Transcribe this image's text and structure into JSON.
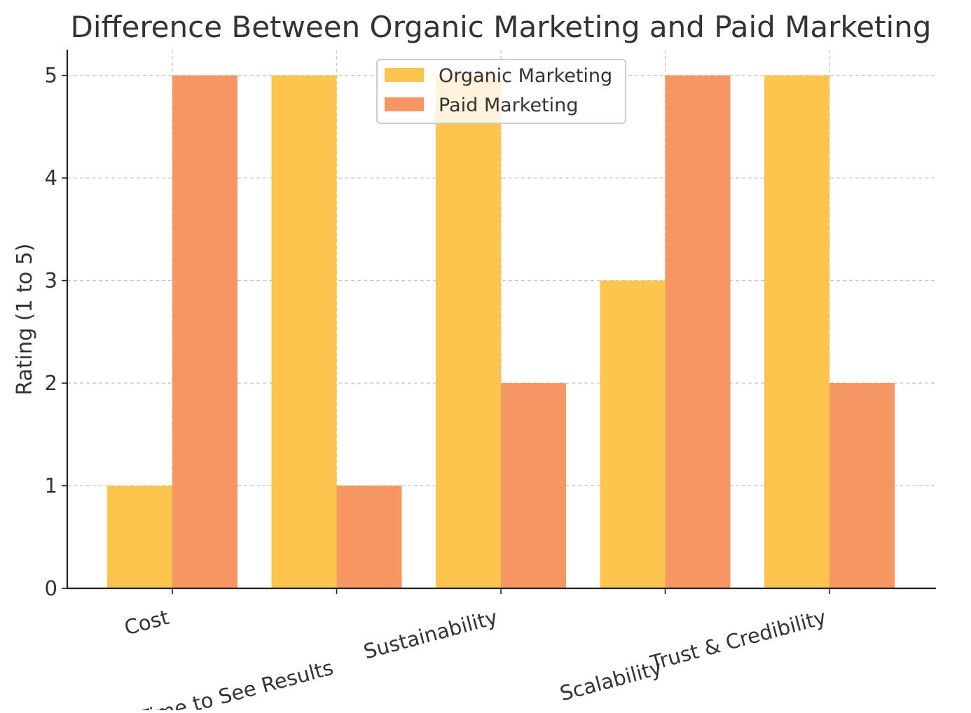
{
  "chart_data": {
    "type": "bar",
    "title": "Difference Between Organic Marketing and Paid Marketing",
    "xlabel": "",
    "ylabel": "Rating (1 to 5)",
    "categories": [
      "Cost",
      "Time to See Results",
      "Sustainability",
      "Scalability",
      "Trust & Credibility"
    ],
    "series": [
      {
        "name": "Organic Marketing",
        "values": [
          1,
          5,
          5,
          3,
          5
        ],
        "color": "#FDC54D"
      },
      {
        "name": "Paid Marketing",
        "values": [
          5,
          1,
          2,
          5,
          2
        ],
        "color": "#F59663"
      }
    ],
    "ylim": [
      0,
      5.25
    ],
    "yticks": [
      0,
      1,
      2,
      3,
      4,
      5
    ],
    "grid": true,
    "legend_position": "top-center"
  }
}
